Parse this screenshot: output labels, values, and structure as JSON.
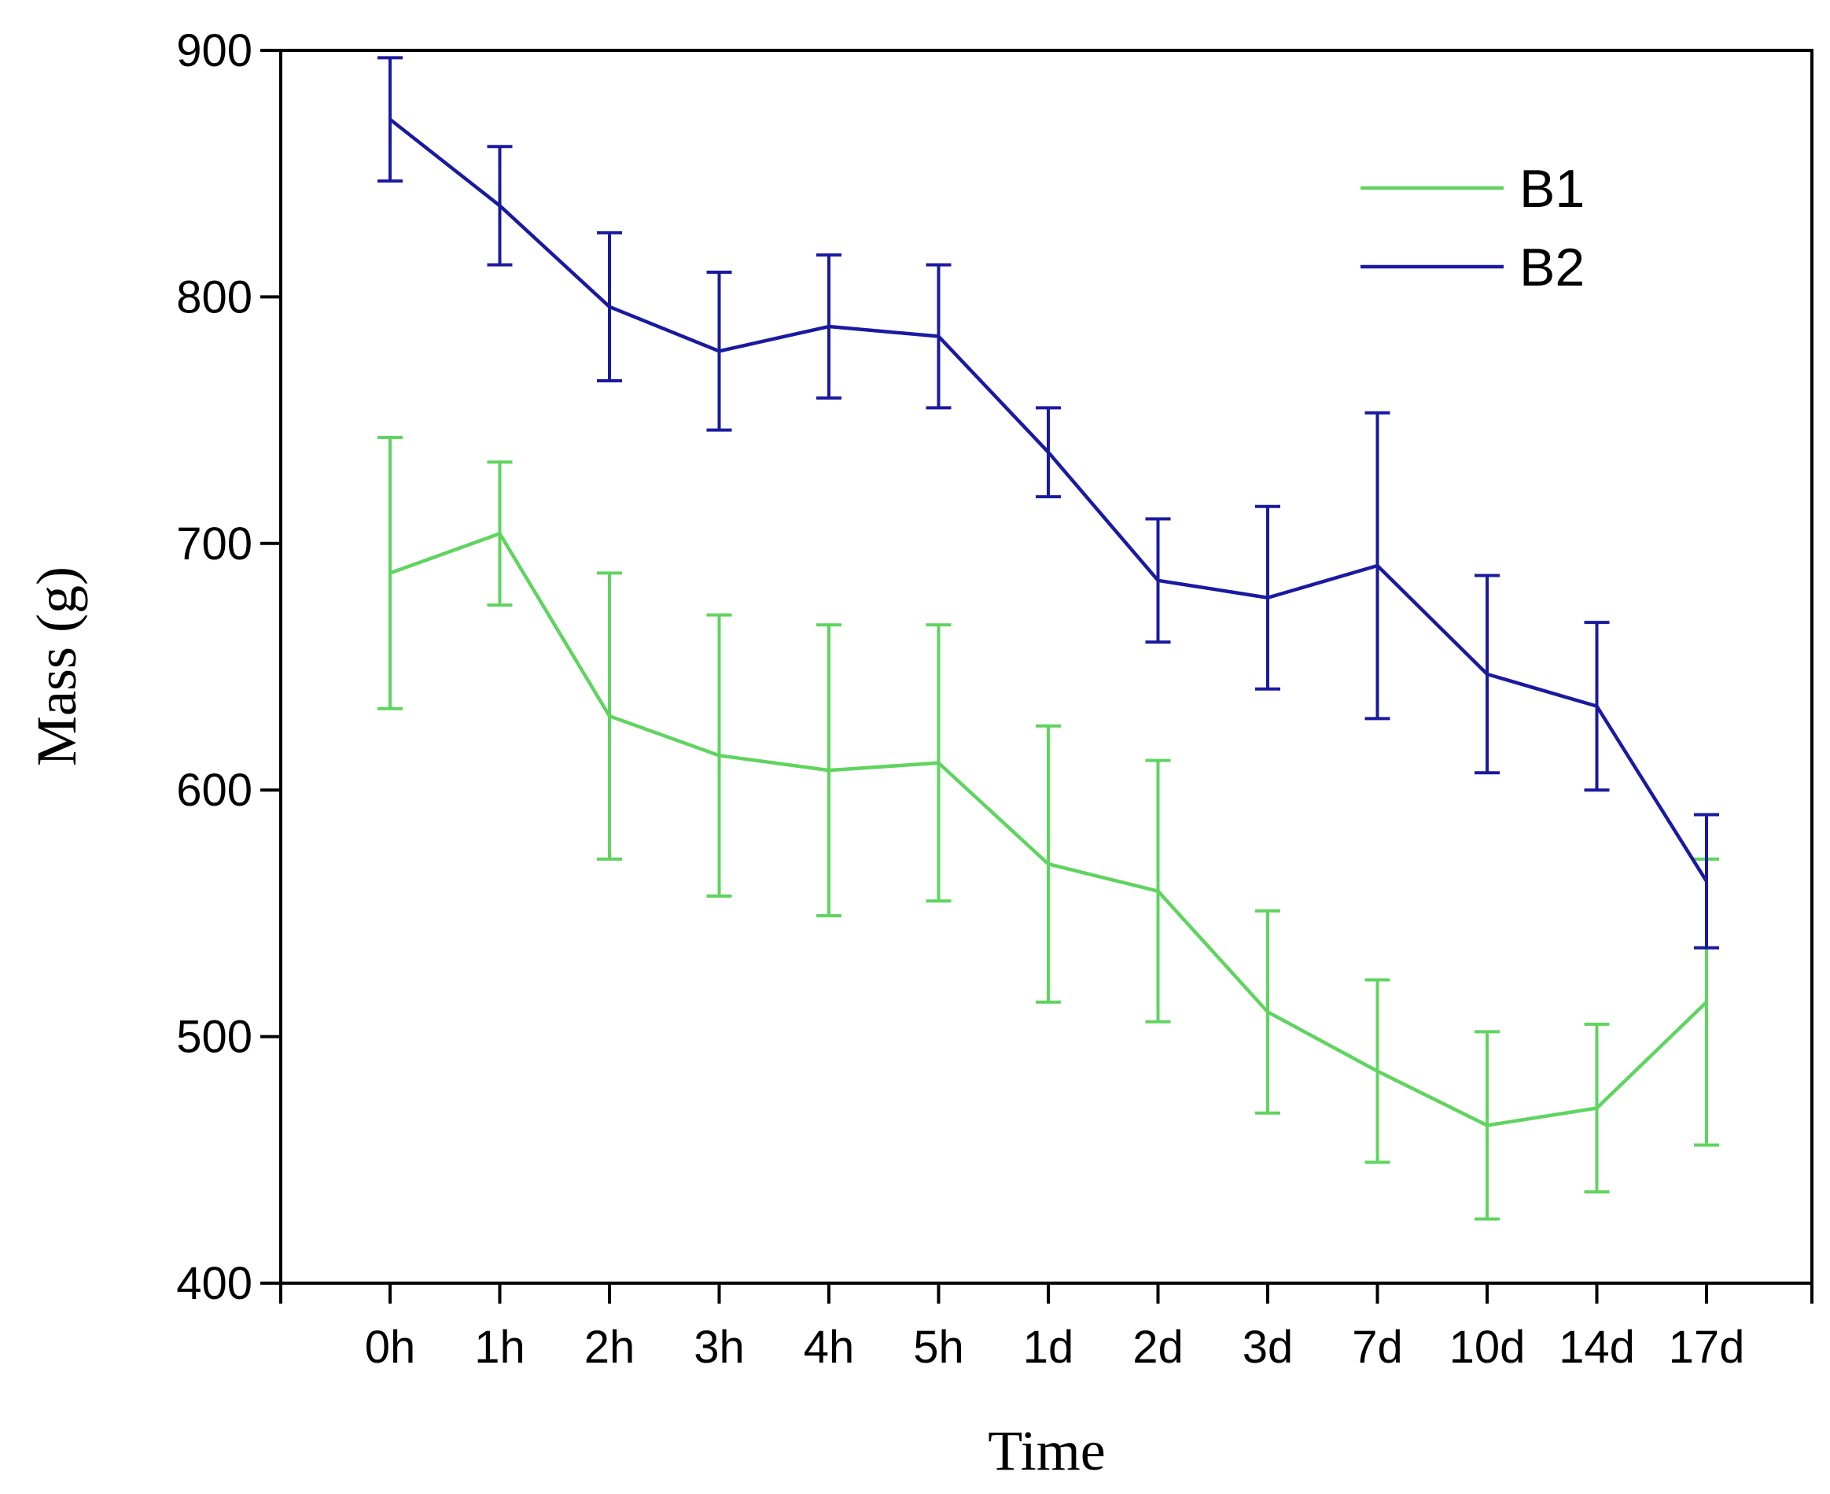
{
  "chart_data": {
    "type": "line",
    "title": "",
    "xlabel": "Time",
    "ylabel": "Mass (g)",
    "categories": [
      "0h",
      "1h",
      "2h",
      "3h",
      "4h",
      "5h",
      "1d",
      "2d",
      "3d",
      "7d",
      "10d",
      "14d",
      "17d"
    ],
    "ylim": [
      400,
      900
    ],
    "yticks": [
      400,
      500,
      600,
      700,
      800,
      900
    ],
    "grid": false,
    "legend_position": "top-right",
    "error_bars": true,
    "series": [
      {
        "name": "B1",
        "color": "#5fd45f",
        "values": [
          688,
          704,
          630,
          614,
          608,
          611,
          570,
          559,
          510,
          486,
          464,
          471,
          514
        ],
        "errors": [
          55,
          29,
          58,
          57,
          59,
          56,
          56,
          53,
          41,
          37,
          38,
          34,
          58
        ]
      },
      {
        "name": "B2",
        "color": "#1a1aa0",
        "values": [
          872,
          837,
          796,
          778,
          788,
          784,
          737,
          685,
          678,
          691,
          647,
          634,
          563
        ],
        "errors": [
          25,
          24,
          30,
          32,
          29,
          29,
          18,
          25,
          37,
          62,
          40,
          34,
          27
        ]
      }
    ]
  }
}
